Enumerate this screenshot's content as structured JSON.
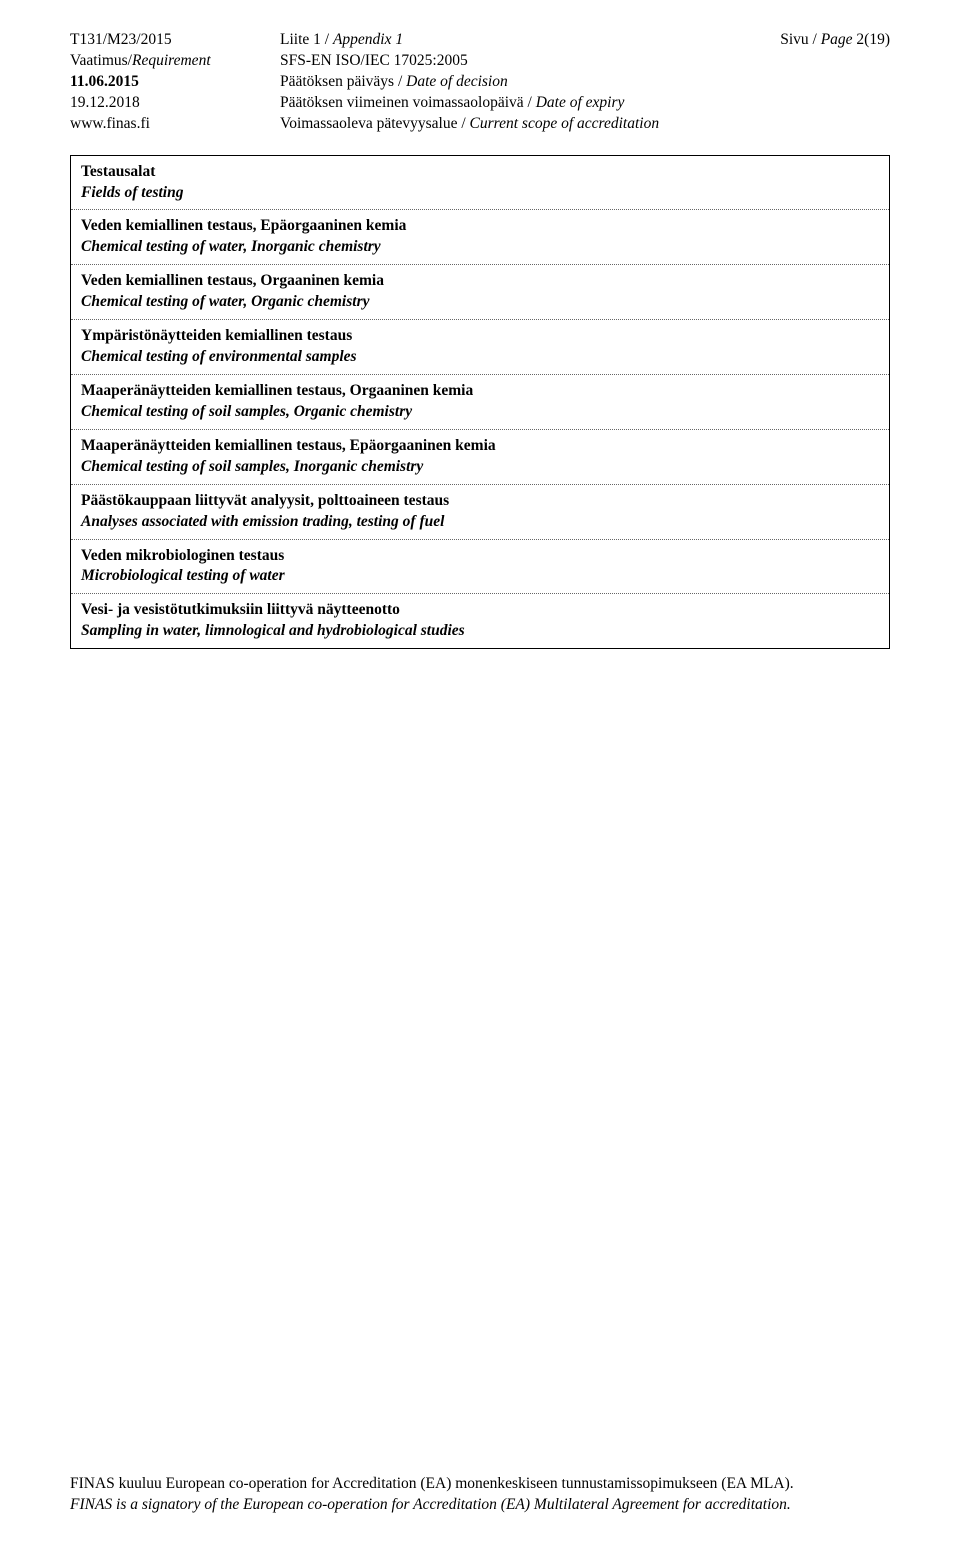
{
  "header": {
    "left": {
      "doc_ref": "T131/M23/2015",
      "requirement_label_fi": "Vaatimus/",
      "requirement_label_en": "Requirement",
      "date1": "11.06.2015",
      "date2": "19.12.2018",
      "website": "www.finas.fi"
    },
    "center": {
      "appendix_fi": "Liite 1 / ",
      "appendix_en": "Appendix 1",
      "standard": "SFS-EN ISO/IEC 17025:2005",
      "decision_fi": "Päätöksen päiväys / ",
      "decision_en": "Date of decision",
      "expiry_fi": "Päätöksen viimeinen voimassaolopäivä / ",
      "expiry_en": "Date of expiry",
      "scope_fi": "Voimassaoleva pätevyysalue / ",
      "scope_en": "Current scope of accreditation"
    },
    "right": {
      "page_fi": "Sivu / ",
      "page_en": "Page ",
      "page_num": "2(19)"
    }
  },
  "section": {
    "title_fi": "Testausalat",
    "title_en": "Fields of testing"
  },
  "entries": [
    {
      "fi": "Veden kemiallinen testaus, Epäorgaaninen kemia",
      "en": "Chemical testing of water, Inorganic chemistry"
    },
    {
      "fi": "Veden kemiallinen testaus, Orgaaninen kemia",
      "en": "Chemical testing of water, Organic chemistry"
    },
    {
      "fi": "Ympäristönäytteiden kemiallinen testaus",
      "en": "Chemical testing of environmental samples"
    },
    {
      "fi": "Maaperänäytteiden kemiallinen testaus, Orgaaninen kemia",
      "en": "Chemical testing of soil samples, Organic chemistry"
    },
    {
      "fi": "Maaperänäytteiden kemiallinen testaus, Epäorgaaninen kemia",
      "en": "Chemical testing of soil samples, Inorganic chemistry"
    },
    {
      "fi": "Päästökauppaan liittyvät analyysit, polttoaineen testaus",
      "en": "Analyses associated with emission trading, testing of fuel"
    },
    {
      "fi": "Veden mikrobiologinen testaus",
      "en": "Microbiological testing of water"
    },
    {
      "fi": "Vesi- ja vesistötutkimuksiin liittyvä näytteenotto",
      "en": "Sampling in water, limnological and hydrobiological studies"
    }
  ],
  "footer": {
    "line1": "FINAS kuuluu European co-operation for Accreditation (EA) monenkeskiseen tunnustamissopimukseen (EA MLA).",
    "line2": "FINAS is a signatory of the European co-operation for Accreditation (EA) Multilateral Agreement for accreditation."
  }
}
